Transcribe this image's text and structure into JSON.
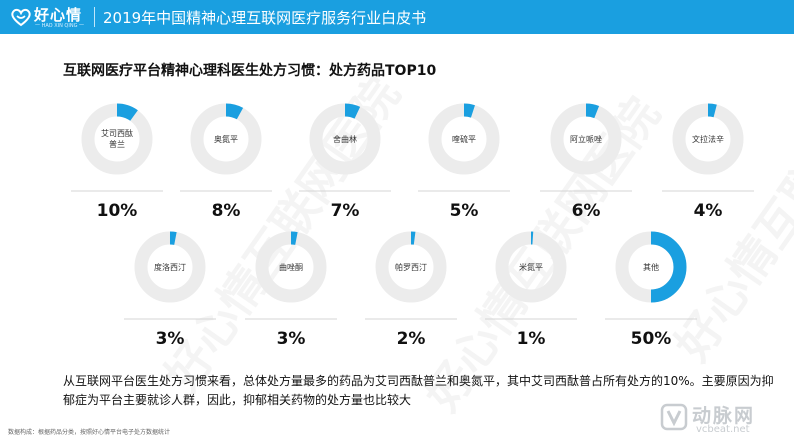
{
  "header": {
    "logo_text": "好心情",
    "logo_subtext": "一 HAO XIN QING 一",
    "title": "2019年中国精神心理互联网医疗服务行业白皮书"
  },
  "watermark_text": "好心情互联网医院",
  "colors": {
    "header": "#1a9fe0",
    "accent": "#1a9fe0",
    "track": "#ececec"
  },
  "chart_data": {
    "type": "pie",
    "title": "互联网医疗平台精神心理科医生处方习惯：处方药品TOP10",
    "categories": [
      "艾司西酞普兰",
      "奥氮平",
      "舍曲林",
      "喹硫平",
      "阿立哌唑",
      "文拉法辛",
      "度洛西汀",
      "曲唑酮",
      "帕罗西汀",
      "米氮平",
      "其他"
    ],
    "values": [
      10,
      8,
      7,
      5,
      6,
      4,
      3,
      3,
      2,
      1,
      50
    ],
    "value_labels": [
      "10%",
      "8%",
      "7%",
      "5%",
      "6%",
      "4%",
      "3%",
      "3%",
      "2%",
      "1%",
      "50%"
    ],
    "unit": "%"
  },
  "summary": "从互联网平台医生处方习惯来看，总体处方量最多的药品为艾司西酞普兰和奥氮平，其中艾司西酞普占所有处方的10%。主要原因为抑郁症为平台主要就诊人群，因此，抑郁相关药物的处方量也比较大",
  "source": "数据构成：根据药品分类，按照好心情平台电子处方数据统计",
  "brand": {
    "name": "动脉网",
    "url": "vcbeat.net"
  }
}
